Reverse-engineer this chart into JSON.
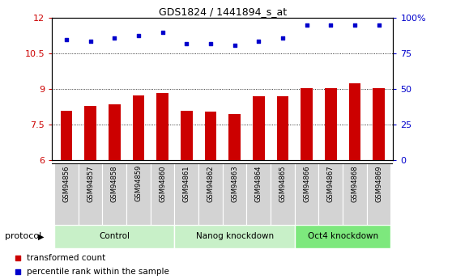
{
  "title": "GDS1824 / 1441894_s_at",
  "samples": [
    "GSM94856",
    "GSM94857",
    "GSM94858",
    "GSM94859",
    "GSM94860",
    "GSM94861",
    "GSM94862",
    "GSM94863",
    "GSM94864",
    "GSM94865",
    "GSM94866",
    "GSM94867",
    "GSM94868",
    "GSM94869"
  ],
  "transformed_count": [
    8.1,
    8.3,
    8.35,
    8.75,
    8.85,
    8.1,
    8.05,
    7.95,
    8.7,
    8.7,
    9.05,
    9.05,
    9.25,
    9.05
  ],
  "percentile_rank": [
    85,
    84,
    86,
    88,
    90,
    82,
    82,
    81,
    84,
    86,
    95,
    95,
    95,
    95
  ],
  "groups": [
    {
      "label": "Control",
      "start": 0,
      "end": 4,
      "color": "#c8f0c8"
    },
    {
      "label": "Nanog knockdown",
      "start": 5,
      "end": 9,
      "color": "#c8f0c8"
    },
    {
      "label": "Oct4 knockdown",
      "start": 10,
      "end": 13,
      "color": "#7de87d"
    }
  ],
  "bar_color": "#cc0000",
  "dot_color": "#0000cc",
  "ylim_left": [
    6,
    12
  ],
  "ylim_right": [
    0,
    100
  ],
  "yticks_left": [
    6,
    7.5,
    9,
    10.5,
    12
  ],
  "yticks_right": [
    0,
    25,
    50,
    75,
    100
  ],
  "ytick_labels_right": [
    "0",
    "25",
    "50",
    "75",
    "100%"
  ],
  "legend_red": "transformed count",
  "legend_blue": "percentile rank within the sample",
  "protocol_label": "protocol",
  "tick_area_color": "#d3d3d3",
  "xlim": [
    -0.6,
    13.6
  ]
}
